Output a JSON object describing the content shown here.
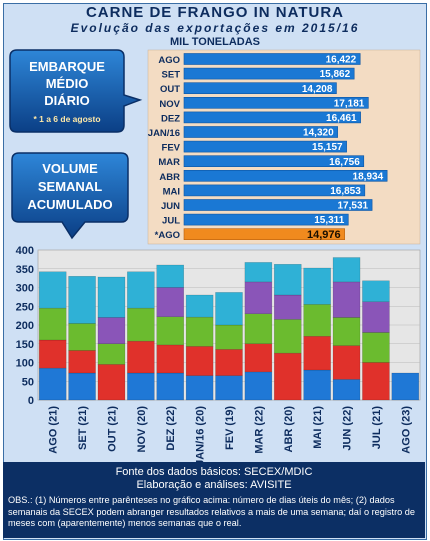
{
  "header": {
    "title": "CARNE DE FRANGO IN NATURA",
    "subtitle": "Evolução das exportações em 2015/16",
    "unit": "MIL TONELADAS"
  },
  "callouts": {
    "daily": [
      "EMBARQUE",
      "MÉDIO",
      "DIÁRIO"
    ],
    "daily_note": "* 1 a 6 de agosto",
    "weekly": [
      "VOLUME",
      "SEMANAL",
      "ACUMULADO"
    ]
  },
  "colors": {
    "background": "#cfe0f4",
    "bar_blue": "#1a78d4",
    "bar_highlight": "#f08a1e",
    "footer_bg": "#0c2f64",
    "week1": "#1f78d6",
    "week2": "#e0312b",
    "week3": "#6bbb2f",
    "week4": "#8a55b8",
    "week5": "#2fb1d6"
  },
  "chart_data": [
    {
      "type": "bar",
      "orientation": "horizontal",
      "title": "EMBARQUE MÉDIO DIÁRIO",
      "categories": [
        "AGO",
        "SET",
        "OUT",
        "NOV",
        "DEZ",
        "JAN/16",
        "FEV",
        "MAR",
        "ABR",
        "MAI",
        "JUN",
        "JUL",
        "*AGO"
      ],
      "values": [
        16.422,
        15.862,
        14.208,
        17.181,
        16.461,
        14.32,
        15.157,
        16.756,
        18.934,
        16.853,
        17.531,
        15.311,
        14.976
      ],
      "labels": [
        "16,422",
        "15,862",
        "14,208",
        "17,181",
        "16,461",
        "14,320",
        "15,157",
        "16,756",
        "18,934",
        "16,853",
        "17,531",
        "15,311",
        "14,976"
      ],
      "highlight_index": 12,
      "note": "* 1 a 6 de agosto"
    },
    {
      "type": "bar",
      "stacked": true,
      "title": "VOLUME SEMANAL ACUMULADO",
      "categories": [
        "AGO (21)",
        "SET (21)",
        "OUT (21)",
        "NOV (20)",
        "DEZ (22)",
        "JAN/16 (20)",
        "FEV (19)",
        "MAR (22)",
        "ABR (20)",
        "MAI (21)",
        "JUN (22)",
        "JUL (21)",
        "AGO (23)"
      ],
      "ylim": [
        0,
        400
      ],
      "yticks": [
        0,
        50,
        100,
        150,
        200,
        250,
        300,
        350,
        400
      ],
      "grid": true,
      "series": [
        {
          "values": [
            85,
            72,
            0,
            72,
            72,
            65,
            65,
            75,
            0,
            80,
            55,
            0,
            72
          ]
        },
        {
          "values": [
            75,
            60,
            95,
            85,
            75,
            78,
            70,
            75,
            125,
            90,
            90,
            100,
            0
          ]
        },
        {
          "values": [
            85,
            72,
            55,
            88,
            75,
            78,
            65,
            80,
            90,
            85,
            75,
            80,
            0
          ]
        },
        {
          "values": [
            0,
            0,
            70,
            0,
            78,
            0,
            0,
            85,
            65,
            0,
            95,
            82,
            0
          ]
        },
        {
          "values": [
            97,
            126,
            108,
            97,
            60,
            59,
            87,
            52,
            82,
            97,
            65,
            56,
            0
          ]
        }
      ]
    }
  ],
  "footer": {
    "source": "Fonte dos dados básicos: SECEX/MDIC",
    "elaboration": "Elaboração e análises: AVISITE",
    "notes": "OBS.: (1) Números entre parênteses no gráfico acima: número de dias úteis do mês; (2) dados semanais da SECEX podem abranger resultados relativos a mais de uma semana; daí o registro de meses com (aparentemente) menos semanas que o real."
  }
}
